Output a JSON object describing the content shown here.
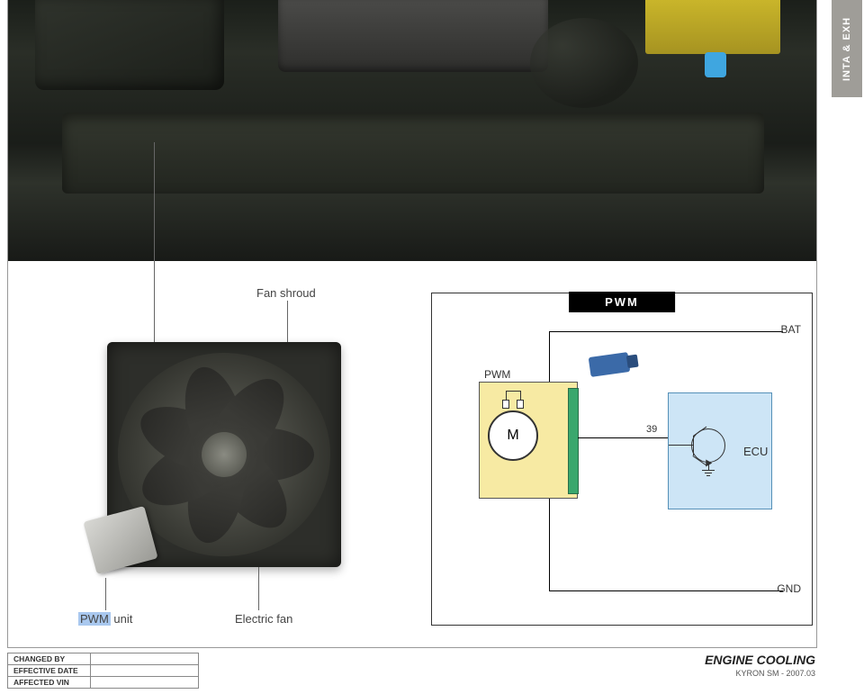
{
  "sideTab": "INTA & EXH",
  "labels": {
    "fanShroud": "Fan shroud",
    "pwmUnit_prefix": "PWM",
    "pwmUnit_suffix": " unit",
    "electricFan": "Electric fan"
  },
  "diagram": {
    "title": "PWM",
    "bat": "BAT",
    "gnd": "GND",
    "pwm": "PWM",
    "ecu": "ECU",
    "pin39": "39",
    "motor": "M",
    "colors": {
      "pwmBlock": "#f7eaa3",
      "pcb": "#3aa76d",
      "ecuBlock": "#cde5f6",
      "connector": "#3b6aa8"
    }
  },
  "footer": {
    "rows": [
      "CHANGED BY",
      "EFFECTIVE DATE",
      "AFFECTED VIN"
    ],
    "title": "ENGINE COOLING",
    "subtitle": "KYRON SM - 2007.03"
  }
}
